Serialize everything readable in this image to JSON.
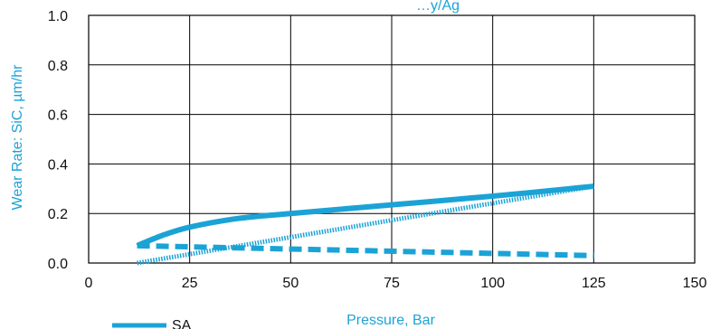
{
  "colors": {
    "series": "#1ba3d6",
    "grid": "#000000",
    "text": "#111111"
  },
  "chart_data": {
    "type": "line",
    "title": "…y/Ag",
    "xlabel": "Pressure, Bar",
    "ylabel": "Wear Rate: SiC, µm/hr",
    "xlim": [
      0,
      150
    ],
    "ylim": [
      0,
      1.0
    ],
    "x_ticks": [
      "0",
      "25",
      "50",
      "75",
      "100",
      "125",
      "150"
    ],
    "y_ticks": [
      "0.0",
      "0.2",
      "0.4",
      "0.6",
      "0.8",
      "1.0"
    ],
    "grid": true,
    "legend_position": "bottom-left",
    "series": [
      {
        "name": "SA",
        "style": "solid",
        "points": [
          [
            12,
            0.07
          ],
          [
            18,
            0.11
          ],
          [
            25,
            0.145
          ],
          [
            37,
            0.18
          ],
          [
            50,
            0.2
          ],
          [
            75,
            0.235
          ],
          [
            100,
            0.27
          ],
          [
            125,
            0.31
          ]
        ]
      },
      {
        "style": "dotted",
        "points": [
          [
            12,
            0.0
          ],
          [
            125,
            0.31
          ]
        ]
      },
      {
        "style": "dashed",
        "points": [
          [
            12,
            0.07
          ],
          [
            125,
            0.03
          ]
        ]
      }
    ]
  }
}
